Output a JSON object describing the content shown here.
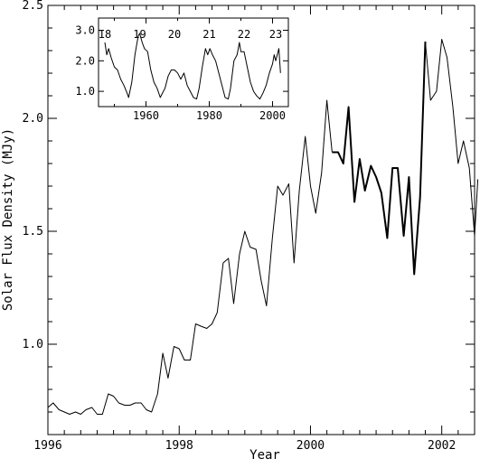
{
  "chart_data": [
    {
      "type": "line",
      "xlabel": "Year",
      "ylabel": "Solar Flux Density (MJy)",
      "xlim": [
        1996,
        2002.5
      ],
      "ylim": [
        0.6,
        2.5
      ],
      "x_ticks": [
        1996,
        1998,
        2000,
        2002
      ],
      "y_ticks": [
        1.0,
        1.5,
        2.0,
        2.5
      ],
      "x_tick_labels": [
        "1996",
        "1998",
        "2000",
        "2002"
      ],
      "y_tick_labels": [
        "1.0",
        "1.5",
        "2.0",
        "2.5"
      ],
      "grid": false,
      "series": [
        {
          "style": "thin",
          "x": [
            1996.0,
            1996.08,
            1996.17,
            1996.25,
            1996.33,
            1996.42,
            1996.5,
            1996.58,
            1996.67,
            1996.75,
            1996.83,
            1996.92,
            1997.0,
            1997.08,
            1997.17,
            1997.25,
            1997.33,
            1997.42,
            1997.5,
            1997.58,
            1997.67,
            1997.75,
            1997.83,
            1997.92,
            1998.0,
            1998.08,
            1998.17,
            1998.25,
            1998.33,
            1998.42,
            1998.5,
            1998.58,
            1998.67,
            1998.75,
            1998.83,
            1998.92,
            1999.0,
            1999.08,
            1999.17,
            1999.25,
            1999.33,
            1999.42,
            1999.5,
            1999.58,
            1999.67,
            1999.75,
            1999.83,
            1999.92,
            2000.0,
            2000.08,
            2000.17,
            2000.25,
            2000.33
          ],
          "y": [
            0.72,
            0.74,
            0.71,
            0.7,
            0.69,
            0.7,
            0.69,
            0.71,
            0.72,
            0.69,
            0.69,
            0.78,
            0.77,
            0.74,
            0.73,
            0.73,
            0.74,
            0.74,
            0.71,
            0.7,
            0.78,
            0.96,
            0.85,
            0.99,
            0.98,
            0.93,
            0.93,
            1.09,
            1.08,
            1.07,
            1.09,
            1.14,
            1.36,
            1.38,
            1.18,
            1.4,
            1.5,
            1.43,
            1.42,
            1.28,
            1.17,
            1.47,
            1.7,
            1.66,
            1.71,
            1.36,
            1.68,
            1.92,
            1.7,
            1.58,
            1.76,
            2.08,
            1.85
          ]
        },
        {
          "style": "thick",
          "x": [
            2000.33,
            2000.42,
            2000.5,
            2000.58,
            2000.67,
            2000.75,
            2000.83,
            2000.92,
            2001.0,
            2001.08,
            2001.17,
            2001.25,
            2001.33,
            2001.42,
            2001.5,
            2001.58,
            2001.67,
            2001.75
          ],
          "y": [
            1.85,
            1.85,
            1.8,
            2.05,
            1.63,
            1.82,
            1.68,
            1.79,
            1.74,
            1.67,
            1.47,
            1.78,
            1.78,
            1.48,
            1.74,
            1.31,
            1.65,
            2.34
          ]
        },
        {
          "style": "thin",
          "x": [
            2001.75,
            2001.83,
            2001.92,
            2002.0,
            2002.08,
            2002.17,
            2002.25,
            2002.33,
            2002.42,
            2002.5
          ],
          "y": [
            2.34,
            2.08,
            2.12,
            2.35,
            2.27,
            2.05,
            1.8,
            1.9,
            1.78,
            1.48
          ]
        },
        {
          "style": "thin",
          "x": [
            2002.5,
            2002.55
          ],
          "y": [
            1.48,
            1.73
          ]
        }
      ]
    },
    {
      "type": "line",
      "role": "inset",
      "xlim": [
        1945,
        2005
      ],
      "ylim": [
        0.5,
        3.4
      ],
      "x_ticks": [
        1960,
        1980,
        2000
      ],
      "y_ticks": [
        1.0,
        2.0,
        3.0
      ],
      "x_tick_labels": [
        "1960",
        "1980",
        "2000"
      ],
      "y_tick_labels": [
        "1.0",
        "2.0",
        "3.0"
      ],
      "cycle_labels": [
        {
          "text": "18",
          "x": 1947
        },
        {
          "text": "19",
          "x": 1958
        },
        {
          "text": "20",
          "x": 1969
        },
        {
          "text": "21",
          "x": 1980
        },
        {
          "text": "22",
          "x": 1991
        },
        {
          "text": "23",
          "x": 2001
        }
      ],
      "series": [
        {
          "x": [
            1947.0,
            1947.6,
            1948.2,
            1949.0,
            1950.0,
            1951.0,
            1952.0,
            1953.0,
            1954.0,
            1954.5,
            1955.5,
            1956.5,
            1957.5,
            1958.0,
            1958.8,
            1959.5,
            1960.5,
            1961.5,
            1962.5,
            1963.5,
            1964.5,
            1965.0,
            1966.0,
            1967.0,
            1968.0,
            1969.0,
            1970.0,
            1971.0,
            1972.0,
            1973.0,
            1974.0,
            1975.0,
            1976.0,
            1976.8,
            1977.8,
            1978.8,
            1979.5,
            1980.2,
            1981.0,
            1982.0,
            1983.0,
            1984.0,
            1985.0,
            1986.0,
            1986.7,
            1987.8,
            1988.8,
            1989.5,
            1990.0,
            1991.0,
            1992.0,
            1993.0,
            1994.0,
            1995.0,
            1996.0,
            1997.0,
            1998.0,
            1999.0,
            2000.0,
            2000.5,
            2001.0,
            2002.0,
            2002.5
          ],
          "y": [
            2.6,
            2.2,
            2.4,
            2.1,
            1.8,
            1.7,
            1.4,
            1.2,
            0.95,
            0.8,
            1.3,
            2.2,
            2.8,
            2.9,
            2.6,
            2.4,
            2.3,
            1.7,
            1.3,
            1.1,
            0.8,
            0.9,
            1.1,
            1.5,
            1.7,
            1.7,
            1.6,
            1.4,
            1.6,
            1.2,
            1.0,
            0.8,
            0.75,
            1.1,
            1.8,
            2.4,
            2.2,
            2.4,
            2.2,
            2.0,
            1.6,
            1.2,
            0.8,
            0.75,
            1.1,
            2.0,
            2.2,
            2.6,
            2.3,
            2.3,
            1.8,
            1.3,
            1.0,
            0.85,
            0.75,
            0.95,
            1.2,
            1.6,
            1.9,
            2.2,
            2.0,
            2.4,
            1.6
          ]
        }
      ]
    }
  ]
}
